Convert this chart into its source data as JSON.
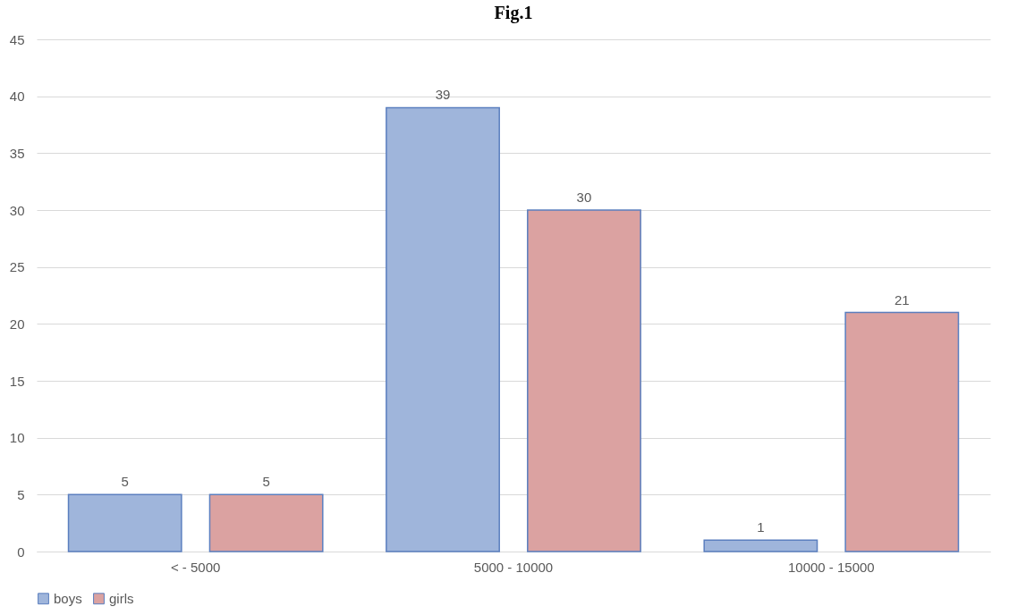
{
  "chart_data": {
    "type": "bar",
    "title": "Fig.1",
    "categories": [
      "< - 5000",
      "5000 - 10000",
      "10000 - 15000"
    ],
    "series": [
      {
        "name": "boys",
        "color": "#9fb5db",
        "values": [
          5,
          39,
          1
        ]
      },
      {
        "name": "girls",
        "color": "#dba2a1",
        "values": [
          5,
          30,
          21
        ]
      }
    ],
    "ylim": [
      0,
      45
    ],
    "yticks": [
      0,
      5,
      10,
      15,
      20,
      25,
      30,
      35,
      40,
      45
    ],
    "grid": "y",
    "legend": "bottom",
    "data_labels": true
  }
}
